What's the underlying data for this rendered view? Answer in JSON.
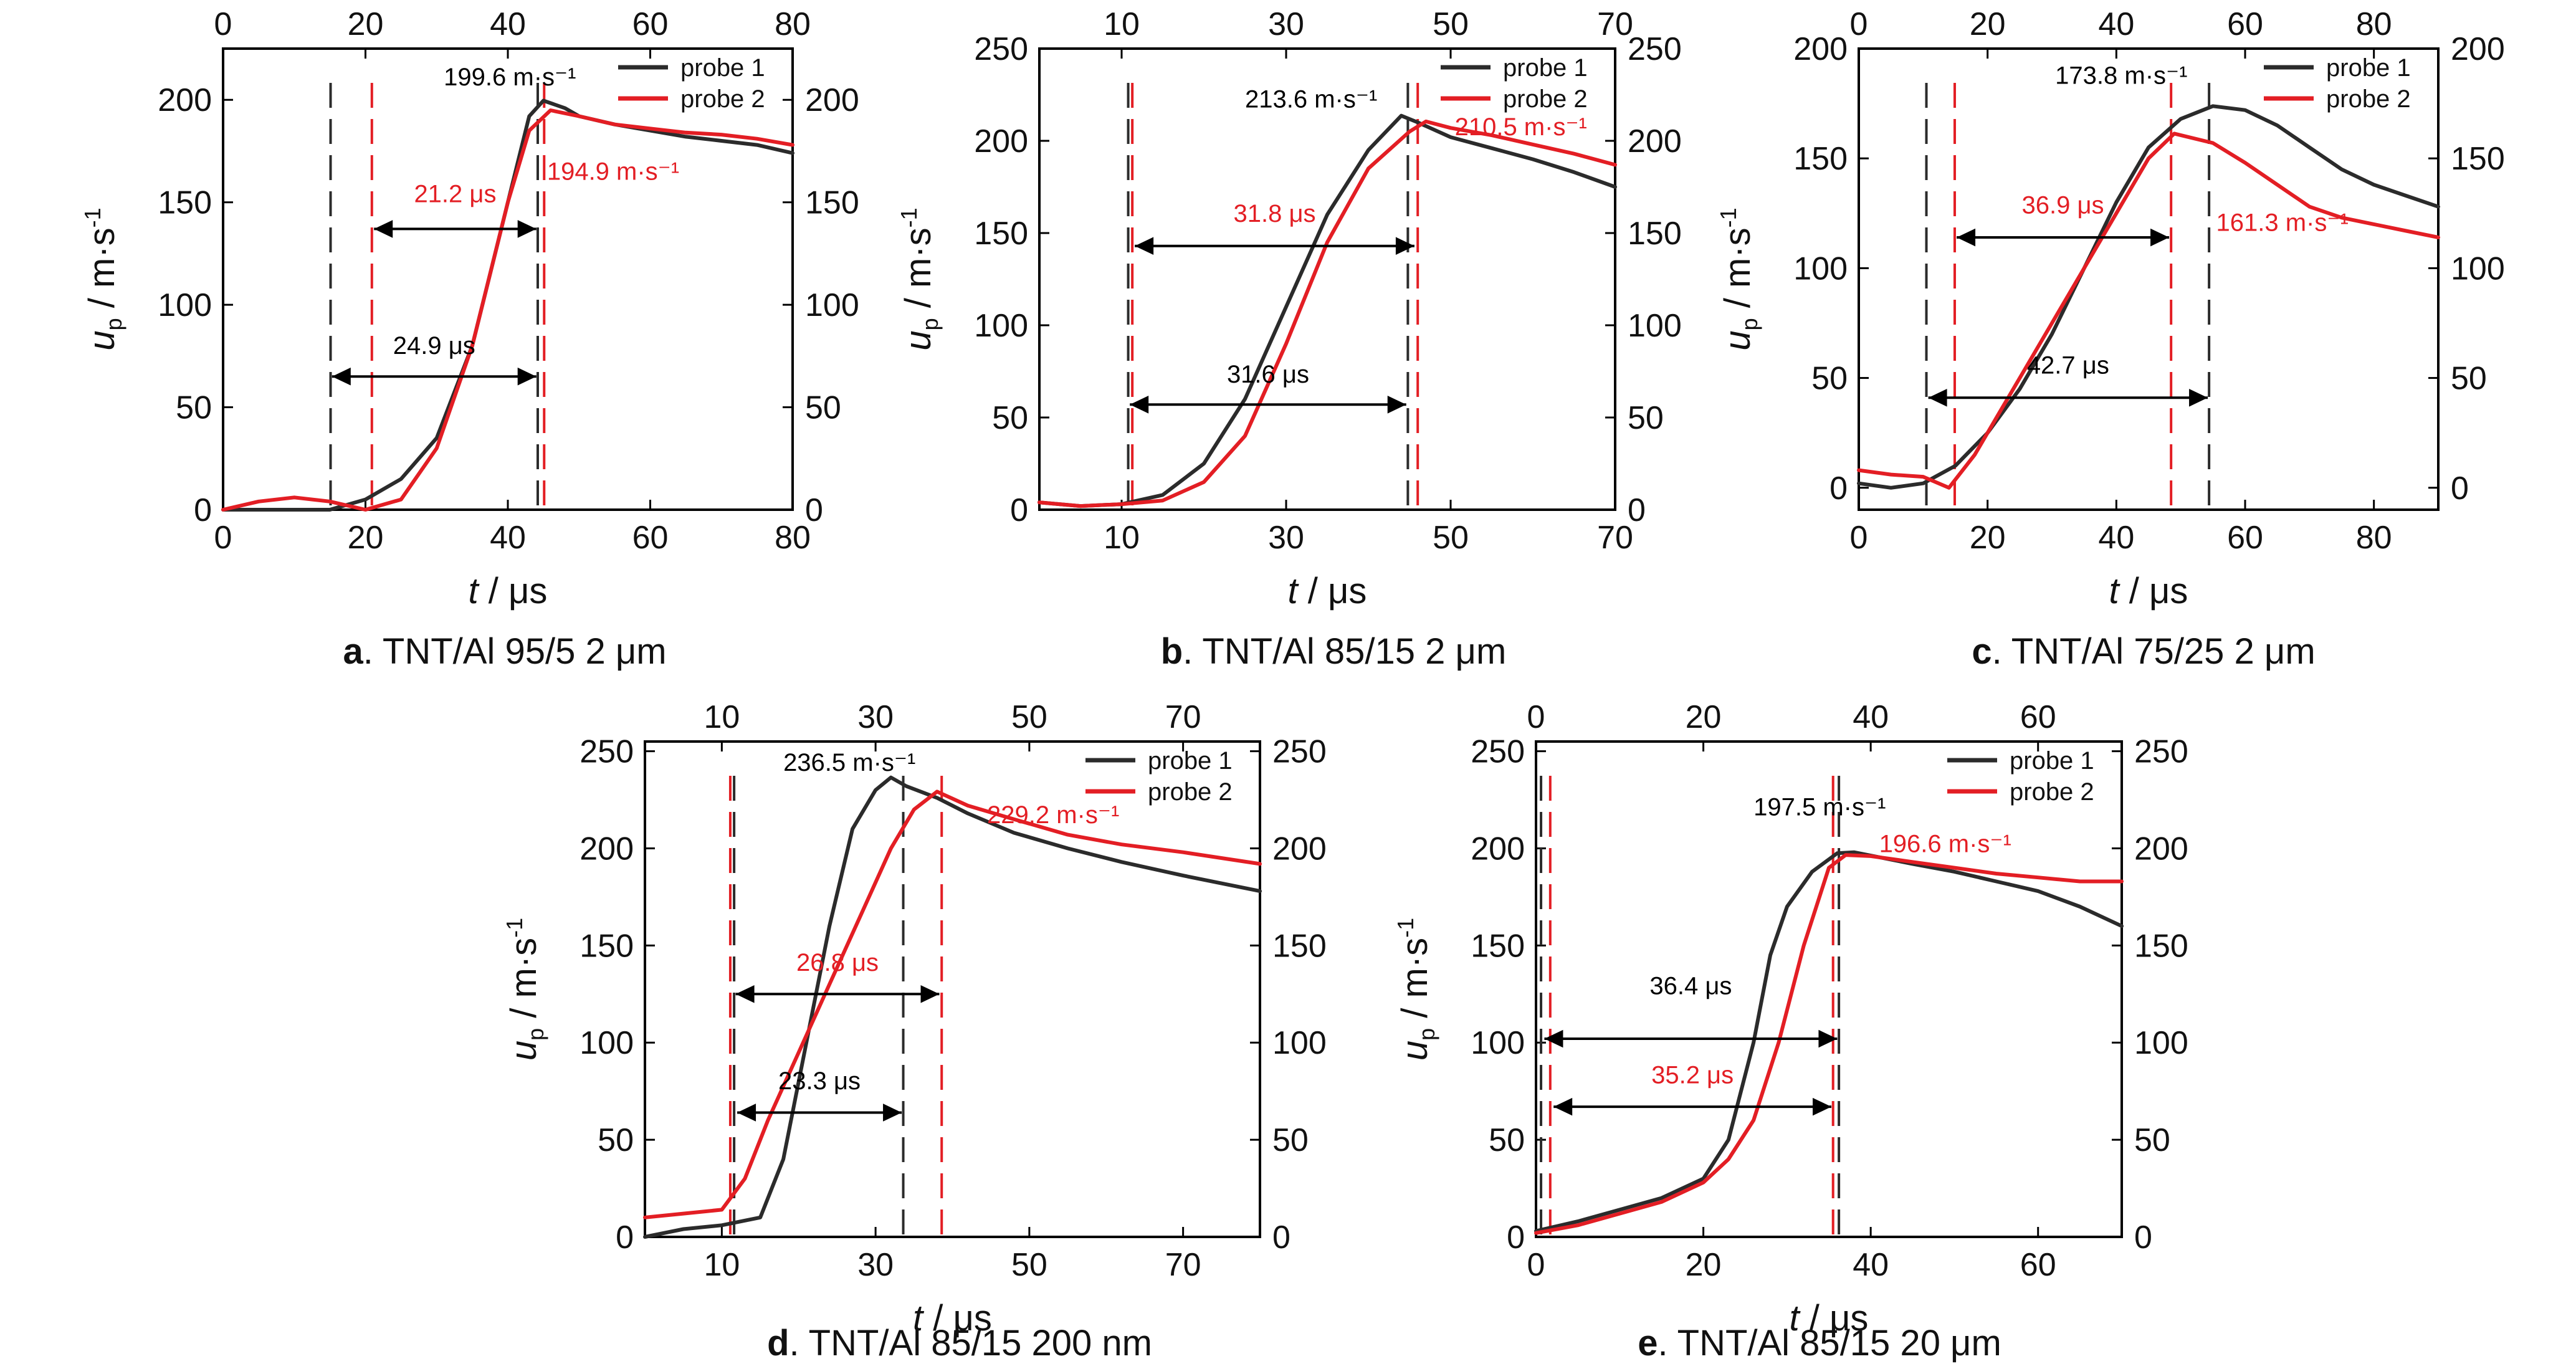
{
  "figure": {
    "colors": {
      "probe1": "#2b2b2b",
      "probe2": "#e31e24",
      "arrow": "#000000"
    }
  },
  "chart_data": [
    {
      "type": "line",
      "panel_letter": "a",
      "caption": ". TNT/Al 95/5 2 μm",
      "xlabel": "t / μs",
      "ylabel": "up / m·s-1",
      "xlim": [
        0,
        80
      ],
      "ylim": [
        0,
        225
      ],
      "x_ticks": [
        0,
        20,
        40,
        60,
        80
      ],
      "x2_ticks": [
        0,
        20,
        40,
        60,
        80
      ],
      "y_ticks": [
        0,
        50,
        100,
        150,
        200
      ],
      "y2_ticks": [
        0,
        50,
        100,
        150,
        200
      ],
      "legend": [
        "probe 1",
        "probe 2"
      ],
      "legend_position": "top-right",
      "series": [
        {
          "name": "probe 1",
          "color": "#2b2b2b",
          "x": [
            0,
            15,
            20,
            25,
            30,
            35,
            40,
            43,
            45,
            48,
            50,
            55,
            60,
            65,
            70,
            75,
            80
          ],
          "y": [
            0,
            0,
            5,
            15,
            35,
            80,
            150,
            192,
            199.6,
            196,
            192,
            188,
            185,
            182,
            180,
            178,
            174
          ]
        },
        {
          "name": "probe 2",
          "color": "#e31e24",
          "x": [
            0,
            5,
            10,
            15,
            20,
            25,
            30,
            35,
            40,
            43,
            46,
            50,
            55,
            60,
            65,
            70,
            75,
            80
          ],
          "y": [
            0,
            4,
            6,
            4,
            0,
            5,
            30,
            80,
            150,
            185,
            194.9,
            192,
            188,
            186,
            184,
            183,
            181,
            178
          ]
        }
      ],
      "markers": [
        {
          "x": 15.1,
          "color": "#2b2b2b"
        },
        {
          "x": 20.9,
          "color": "#e31e24"
        },
        {
          "x": 44.2,
          "color": "#2b2b2b"
        },
        {
          "x": 45.1,
          "color": "#e31e24"
        }
      ],
      "arrows": [
        {
          "x1": 21.2,
          "x2": 44.0,
          "y": 137,
          "label": "21.2 μs",
          "color": "#e31e24",
          "label_y": 150
        },
        {
          "x1": 15.3,
          "x2": 44.0,
          "y": 65,
          "label": "24.9 μs",
          "color": "#000000",
          "label_y": 76
        }
      ],
      "annotations": [
        {
          "text": "199.6 m·s⁻¹",
          "color": "#000000",
          "x": 31,
          "y": 207
        },
        {
          "text": "194.9 m·s⁻¹",
          "color": "#e31e24",
          "x": 45.5,
          "y": 161
        }
      ]
    },
    {
      "type": "line",
      "panel_letter": "b",
      "caption": ". TNT/Al 85/15 2 μm",
      "xlabel": "t / μs",
      "ylabel": "up / m·s-1",
      "xlim": [
        0,
        70
      ],
      "ylim": [
        0,
        250
      ],
      "x_ticks": [
        10,
        30,
        50,
        70
      ],
      "x2_ticks": [
        10,
        30,
        50,
        70
      ],
      "y_ticks": [
        0,
        50,
        100,
        150,
        200,
        250
      ],
      "y2_ticks": [
        0,
        50,
        100,
        150,
        200,
        250
      ],
      "legend": [
        "probe 1",
        "probe 2"
      ],
      "legend_position": "top-right",
      "series": [
        {
          "name": "probe 1",
          "color": "#2b2b2b",
          "x": [
            0,
            5,
            10,
            15,
            20,
            25,
            30,
            35,
            40,
            44,
            46,
            50,
            55,
            60,
            65,
            70
          ],
          "y": [
            4,
            2,
            3,
            8,
            25,
            60,
            110,
            160,
            195,
            213.6,
            210,
            202,
            196,
            190,
            183,
            175
          ]
        },
        {
          "name": "probe 2",
          "color": "#e31e24",
          "x": [
            0,
            5,
            10,
            15,
            20,
            25,
            30,
            35,
            40,
            45,
            47,
            50,
            55,
            60,
            65,
            70
          ],
          "y": [
            4,
            2,
            3,
            5,
            15,
            40,
            90,
            145,
            185,
            205,
            210.5,
            207,
            203,
            198,
            193,
            187
          ]
        }
      ],
      "markers": [
        {
          "x": 10.8,
          "color": "#2b2b2b"
        },
        {
          "x": 11.3,
          "color": "#e31e24"
        },
        {
          "x": 44.8,
          "color": "#2b2b2b"
        },
        {
          "x": 46.0,
          "color": "#e31e24"
        }
      ],
      "arrows": [
        {
          "x1": 11.6,
          "x2": 45.6,
          "y": 143,
          "label": "31.8 μs",
          "color": "#e31e24",
          "label_y": 156
        },
        {
          "x1": 11.0,
          "x2": 44.6,
          "y": 57,
          "label": "31.6 μs",
          "color": "#000000",
          "label_y": 69
        }
      ],
      "annotations": [
        {
          "text": "213.6 m·s⁻¹",
          "color": "#000000",
          "x": 25,
          "y": 218
        },
        {
          "text": "210.5 m·s⁻¹",
          "color": "#e31e24",
          "x": 50.5,
          "y": 203
        }
      ]
    },
    {
      "type": "line",
      "panel_letter": "c",
      "caption": ". TNT/Al 75/25 2 μm",
      "xlabel": "t / μs",
      "ylabel": "up / m·s-1",
      "xlim": [
        0,
        90
      ],
      "ylim": [
        -10,
        200
      ],
      "x_ticks": [
        0,
        20,
        40,
        60,
        80
      ],
      "x2_ticks": [
        0,
        20,
        40,
        60,
        80
      ],
      "y_ticks": [
        0,
        50,
        100,
        150,
        200
      ],
      "y2_ticks": [
        0,
        50,
        100,
        150,
        200
      ],
      "legend": [
        "probe 1",
        "probe 2"
      ],
      "legend_position": "top-right",
      "series": [
        {
          "name": "probe 1",
          "color": "#2b2b2b",
          "x": [
            0,
            5,
            10,
            15,
            20,
            25,
            30,
            35,
            40,
            45,
            50,
            55,
            60,
            65,
            70,
            75,
            80,
            85,
            90
          ],
          "y": [
            2,
            0,
            2,
            10,
            25,
            45,
            70,
            100,
            130,
            155,
            168,
            173.8,
            172,
            165,
            155,
            145,
            138,
            133,
            128
          ]
        },
        {
          "name": "probe 2",
          "color": "#e31e24",
          "x": [
            0,
            5,
            10,
            14,
            18,
            22,
            26,
            30,
            35,
            40,
            45,
            49,
            55,
            60,
            65,
            70,
            75,
            80,
            85,
            90
          ],
          "y": [
            8,
            6,
            5,
            0,
            15,
            35,
            55,
            75,
            100,
            125,
            150,
            161.3,
            157,
            148,
            138,
            128,
            123,
            120,
            117,
            114
          ]
        }
      ],
      "markers": [
        {
          "x": 10.5,
          "color": "#2b2b2b"
        },
        {
          "x": 14.9,
          "color": "#e31e24"
        },
        {
          "x": 48.5,
          "color": "#e31e24"
        },
        {
          "x": 54.4,
          "color": "#2b2b2b"
        }
      ],
      "arrows": [
        {
          "x1": 15.2,
          "x2": 48.2,
          "y": 114,
          "label": "36.9 μs",
          "color": "#e31e24",
          "label_y": 125
        },
        {
          "x1": 10.8,
          "x2": 54.2,
          "y": 41,
          "label": "42.7 μs",
          "color": "#000000",
          "label_y": 52
        }
      ],
      "annotations": [
        {
          "text": "173.8 m·s⁻¹",
          "color": "#000000",
          "x": 30.5,
          "y": 184
        },
        {
          "text": "161.3 m·s⁻¹",
          "color": "#e31e24",
          "x": 55.5,
          "y": 117
        }
      ]
    },
    {
      "type": "line",
      "panel_letter": "d",
      "caption": ". TNT/Al 85/15 200 nm",
      "xlabel": "t / μs",
      "ylabel": "up / m·s-1",
      "xlim": [
        0,
        80
      ],
      "ylim": [
        0,
        255
      ],
      "x_ticks": [
        10,
        30,
        50,
        70
      ],
      "x2_ticks": [
        10,
        30,
        50,
        70
      ],
      "y_ticks": [
        0,
        50,
        100,
        150,
        200,
        250
      ],
      "y2_ticks": [
        0,
        50,
        100,
        150,
        200,
        250
      ],
      "legend": [
        "probe 1",
        "probe 2"
      ],
      "legend_position": "top-right",
      "series": [
        {
          "name": "probe 1",
          "color": "#2b2b2b",
          "x": [
            0,
            5,
            10,
            15,
            18,
            21,
            24,
            27,
            30,
            32,
            34,
            38,
            42,
            48,
            55,
            62,
            70,
            80
          ],
          "y": [
            0,
            4,
            6,
            10,
            40,
            100,
            160,
            210,
            230,
            236.5,
            232,
            226,
            218,
            208,
            200,
            193,
            186,
            178
          ]
        },
        {
          "name": "probe 2",
          "color": "#e31e24",
          "x": [
            0,
            5,
            10,
            13,
            16,
            20,
            24,
            28,
            32,
            35,
            38,
            42,
            48,
            55,
            62,
            70,
            80
          ],
          "y": [
            10,
            12,
            14,
            30,
            60,
            95,
            130,
            165,
            200,
            220,
            229.2,
            222,
            215,
            207,
            202,
            198,
            192
          ]
        }
      ],
      "markers": [
        {
          "x": 11.1,
          "color": "#e31e24"
        },
        {
          "x": 11.6,
          "color": "#2b2b2b"
        },
        {
          "x": 33.6,
          "color": "#2b2b2b"
        },
        {
          "x": 38.6,
          "color": "#e31e24"
        }
      ],
      "arrows": [
        {
          "x1": 11.8,
          "x2": 38.3,
          "y": 125,
          "label": "26.8 μs",
          "color": "#e31e24",
          "label_y": 137
        },
        {
          "x1": 12.0,
          "x2": 33.4,
          "y": 64,
          "label": "23.3 μs",
          "color": "#000000",
          "label_y": 76
        }
      ],
      "annotations": [
        {
          "text": "236.5 m·s⁻¹",
          "color": "#000000",
          "x": 18,
          "y": 240
        },
        {
          "text": "229.2 m·s⁻¹",
          "color": "#e31e24",
          "x": 44.5,
          "y": 213
        }
      ]
    },
    {
      "type": "line",
      "panel_letter": "e",
      "caption": ". TNT/Al 85/15 20 μm",
      "xlabel": "t / μs",
      "ylabel": "up / m·s-1",
      "xlim": [
        0,
        70
      ],
      "ylim": [
        0,
        255
      ],
      "x_ticks": [
        0,
        20,
        40,
        60
      ],
      "x2_ticks": [
        0,
        20,
        40,
        60
      ],
      "y_ticks": [
        0,
        50,
        100,
        150,
        200,
        250
      ],
      "y2_ticks": [
        0,
        50,
        100,
        150,
        200,
        250
      ],
      "legend": [
        "probe 1",
        "probe 2"
      ],
      "legend_position": "top-right",
      "series": [
        {
          "name": "probe 1",
          "color": "#2b2b2b",
          "x": [
            0,
            5,
            10,
            15,
            20,
            23,
            26,
            28,
            30,
            33,
            36,
            38,
            45,
            50,
            55,
            60,
            65,
            70
          ],
          "y": [
            3,
            8,
            14,
            20,
            30,
            50,
            100,
            145,
            170,
            188,
            197.5,
            198,
            192,
            188,
            183,
            178,
            170,
            160
          ]
        },
        {
          "name": "probe 2",
          "color": "#e31e24",
          "x": [
            0,
            5,
            10,
            15,
            20,
            23,
            26,
            29,
            32,
            35,
            37,
            40,
            45,
            50,
            55,
            60,
            65,
            70
          ],
          "y": [
            2,
            6,
            12,
            18,
            28,
            40,
            60,
            100,
            150,
            190,
            196.6,
            196,
            193,
            190,
            187,
            185,
            183,
            183
          ]
        }
      ],
      "markers": [
        {
          "x": 0.6,
          "color": "#2b2b2b"
        },
        {
          "x": 1.7,
          "color": "#e31e24"
        },
        {
          "x": 35.5,
          "color": "#e31e24"
        },
        {
          "x": 36.2,
          "color": "#2b2b2b"
        }
      ],
      "arrows": [
        {
          "x1": 1.0,
          "x2": 36.0,
          "y": 102,
          "label": "36.4 μs",
          "color": "#000000",
          "label_y": 125
        },
        {
          "x1": 2.1,
          "x2": 35.3,
          "y": 67,
          "label": "35.2 μs",
          "color": "#e31e24",
          "label_y": 79
        }
      ],
      "annotations": [
        {
          "text": "197.5 m·s⁻¹",
          "color": "#000000",
          "x": 26,
          "y": 217
        },
        {
          "text": "196.6 m·s⁻¹",
          "color": "#e31e24",
          "x": 41,
          "y": 198
        }
      ]
    }
  ]
}
